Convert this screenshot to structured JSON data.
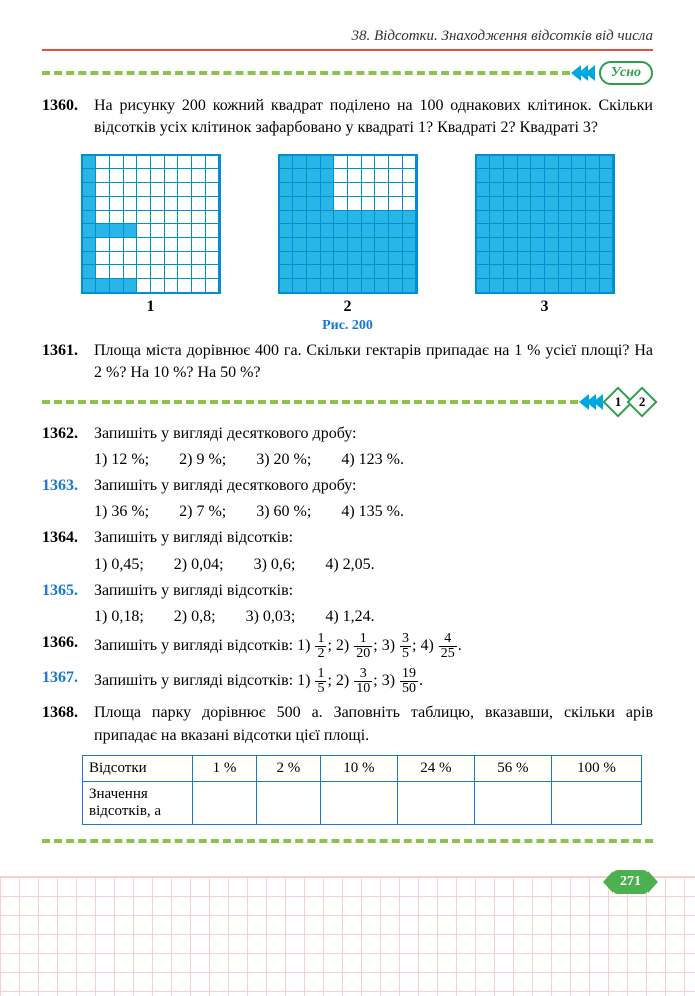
{
  "header": {
    "section_title": "38. Відсотки. Знаходження відсотків від числа"
  },
  "badges": {
    "oral": "Усно",
    "level1": "1",
    "level2": "2"
  },
  "figure": {
    "caption": "Рис. 200",
    "labels": [
      "1",
      "2",
      "3"
    ]
  },
  "grids": {
    "g1_filled_cells": [
      0,
      10,
      20,
      30,
      40,
      50,
      60,
      70,
      80,
      90,
      91,
      92,
      93,
      51,
      52,
      53
    ],
    "g2_white_cells": [
      4,
      5,
      6,
      7,
      8,
      9,
      14,
      15,
      16,
      17,
      18,
      19,
      24,
      25,
      26,
      27,
      28,
      29,
      34,
      35,
      36,
      37,
      38,
      39
    ],
    "g3_all_filled": true,
    "grid_color": "#0090d0",
    "fill_color": "#29b6e6"
  },
  "problems": {
    "p1360": {
      "num": "1360.",
      "text": "На рисунку 200 кожний квадрат поділено на 100 однакових клітинок. Скільки відсотків усіх клітинок зафарбовано у квадраті 1? Квадраті 2? Квадраті 3?"
    },
    "p1361": {
      "num": "1361.",
      "text": "Площа міста дорівнює 400 га. Скільки гектарів припадає на 1 % усієї площі? На 2 %? На 10 %? На 50 %?"
    },
    "p1362": {
      "num": "1362.",
      "text": "Запишіть у вигляді десяткового дробу:",
      "items": [
        "1) 12 %;",
        "2) 9 %;",
        "3) 20 %;",
        "4) 123 %."
      ]
    },
    "p1363": {
      "num": "1363.",
      "text": "Запишіть у вигляді десяткового дробу:",
      "items": [
        "1) 36 %;",
        "2) 7 %;",
        "3) 60 %;",
        "4) 135 %."
      ]
    },
    "p1364": {
      "num": "1364.",
      "text": "Запишіть у вигляді відсотків:",
      "items": [
        "1) 0,45;",
        "2) 0,04;",
        "3) 0,6;",
        "4) 2,05."
      ]
    },
    "p1365": {
      "num": "1365.",
      "text": "Запишіть у вигляді відсотків:",
      "items": [
        "1) 0,18;",
        "2) 0,8;",
        "3) 0,03;",
        "4) 1,24."
      ]
    },
    "p1366": {
      "num": "1366.",
      "text": "Запишіть у вигляді відсотків: ",
      "fracs": [
        {
          "p": "1)",
          "n": "1",
          "d": "2"
        },
        {
          "p": "2)",
          "n": "1",
          "d": "20"
        },
        {
          "p": "3)",
          "n": "3",
          "d": "5"
        },
        {
          "p": "4)",
          "n": "4",
          "d": "25"
        }
      ]
    },
    "p1367": {
      "num": "1367.",
      "text": "Запишіть у вигляді відсотків: ",
      "fracs": [
        {
          "p": "1)",
          "n": "1",
          "d": "5"
        },
        {
          "p": "2)",
          "n": "3",
          "d": "10"
        },
        {
          "p": "3)",
          "n": "19",
          "d": "50"
        }
      ]
    },
    "p1368": {
      "num": "1368.",
      "text": "Площа парку дорівнює 500 а. Заповніть таблицю, вказавши, скільки арів припадає на вказані відсотки цієї площі."
    }
  },
  "table": {
    "row1_label": "Відсотки",
    "row2_label": "Значення відсотків, а",
    "cols": [
      "1 %",
      "2 %",
      "10 %",
      "24 %",
      "56 %",
      "100 %"
    ]
  },
  "page_number": "271",
  "colors": {
    "accent_red": "#e84c3d",
    "accent_green": "#8bc34a",
    "accent_blue": "#1976d2",
    "chevron": "#00a6e0",
    "badge_green": "#2e9e4a",
    "pagenum_bg": "#4caf50"
  }
}
